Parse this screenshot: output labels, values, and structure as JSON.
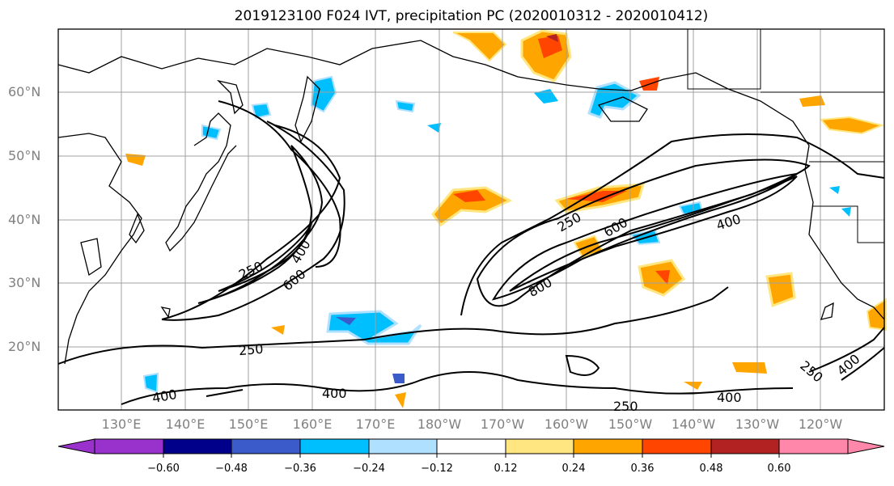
{
  "title": "2019123100 F024 IVT, precipitation PC (2020010312 - 2020010412)",
  "lat_labels": [
    "60°N",
    "50°N",
    "40°N",
    "30°N",
    "20°N"
  ],
  "lon_labels": [
    "130°E",
    "140°E",
    "150°E",
    "160°E",
    "170°E",
    "180°W",
    "170°W",
    "160°W",
    "150°W",
    "140°W",
    "130°W",
    "120°W"
  ],
  "contour_labels": [
    "250",
    "400",
    "600",
    "250",
    "400",
    "600",
    "800",
    "250",
    "400",
    "400",
    "250",
    "400",
    "250",
    "400"
  ],
  "colorbar": {
    "ticks": [
      "−0.60",
      "−0.48",
      "−0.36",
      "−0.24",
      "−0.12",
      "0.12",
      "0.24",
      "0.36",
      "0.48",
      "0.60"
    ],
    "colors": [
      "#9932cc",
      "#00008b",
      "#3a5bc9",
      "#00bfff",
      "#b0e0ff",
      "#ffffff",
      "#ffe680",
      "#ffa500",
      "#ff4500",
      "#b22222",
      "#ff88aa"
    ]
  }
}
